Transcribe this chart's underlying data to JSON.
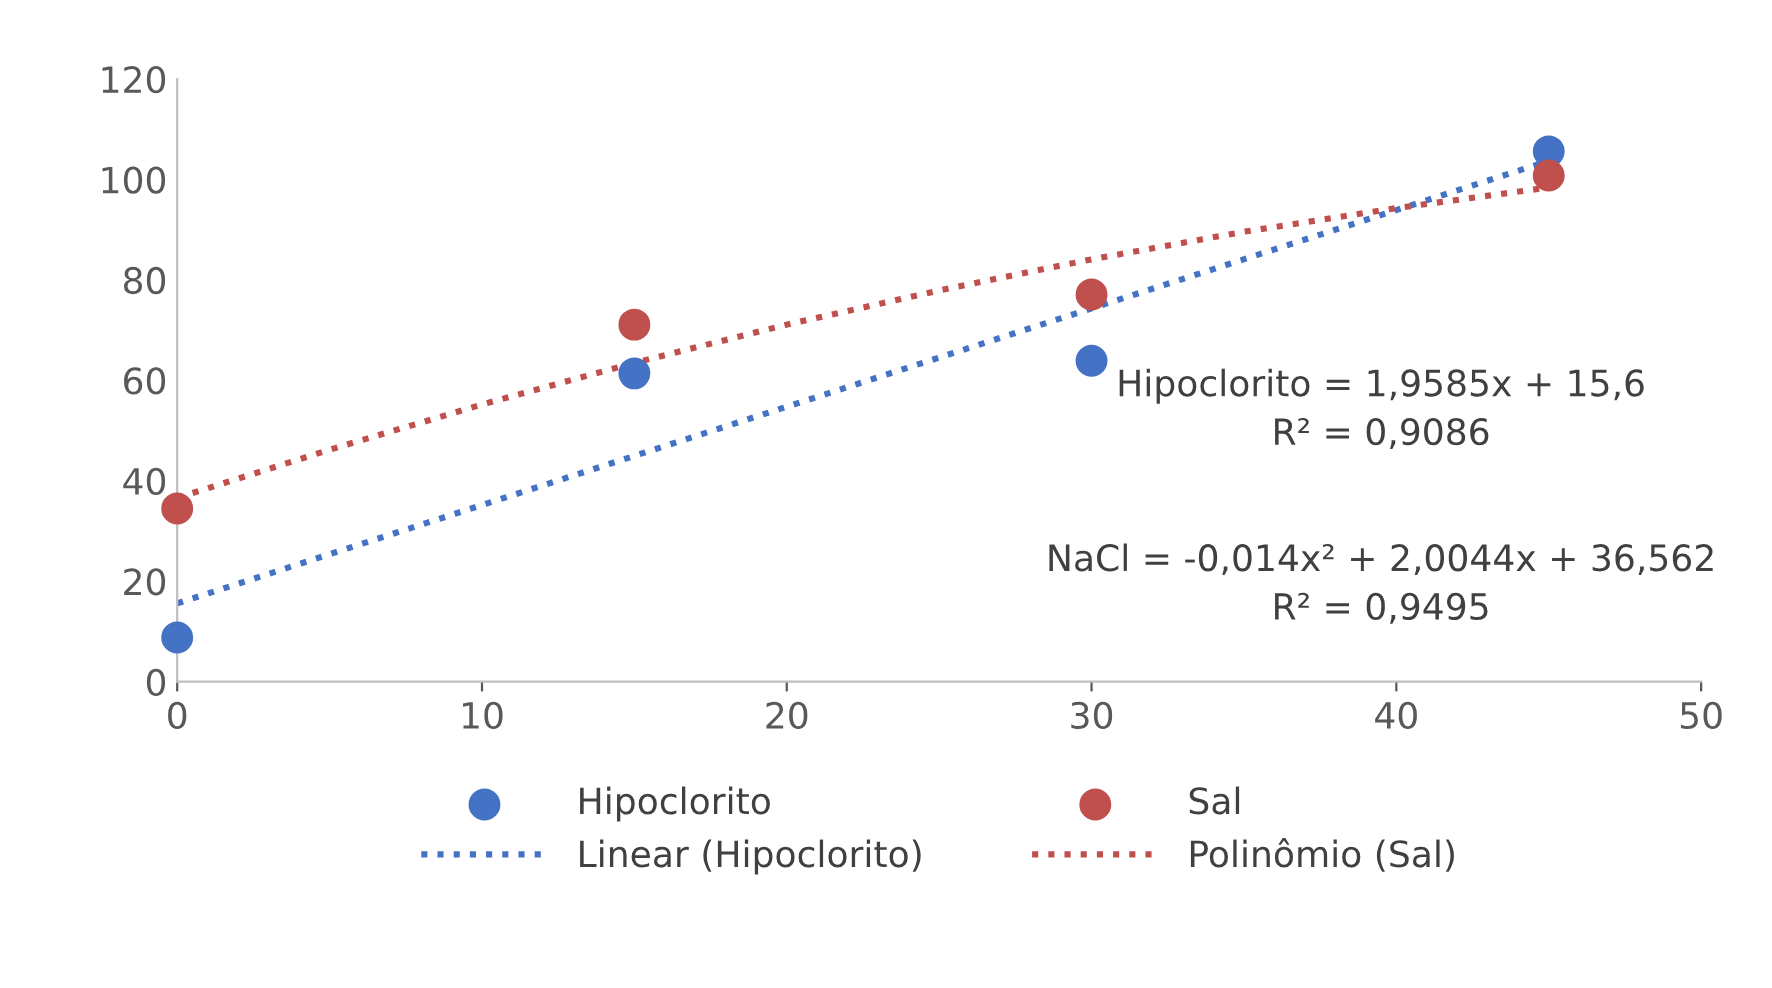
{
  "chart_data": {
    "type": "scatter",
    "x": [
      0,
      15,
      30,
      45
    ],
    "series": [
      {
        "name": "Hipoclorito",
        "color": "#4472c4",
        "values": [
          8.8,
          61.4,
          63.9,
          105.6
        ]
      },
      {
        "name": "Sal",
        "color": "#c0504d",
        "values": [
          34.5,
          71.1,
          77.1,
          100.8
        ]
      },
      {
        "name": "Linear (Hipoclorito)",
        "type": "line",
        "marker": "none",
        "color": "#4472c4",
        "line_style": "dotted",
        "x": [
          0,
          45
        ],
        "values": [
          15.6,
          103.7
        ]
      },
      {
        "name": "Polinômio (Sal)",
        "type": "line",
        "marker": "none",
        "color": "#c0504d",
        "line_style": "dotted",
        "x": [
          0,
          5,
          10,
          15,
          20,
          25,
          30,
          35,
          40,
          45
        ],
        "values": [
          36.6,
          46.2,
          55.2,
          63.5,
          71.1,
          77.9,
          84.1,
          89.6,
          94.3,
          98.4
        ]
      }
    ],
    "marker": "circle",
    "xlim": [
      0,
      50
    ],
    "ylim": [
      0,
      120
    ],
    "xticks": [
      0,
      10,
      20,
      30,
      40,
      50
    ],
    "yticks": [
      0,
      20,
      40,
      60,
      80,
      100,
      120
    ],
    "grid": false,
    "legend": "bottom",
    "annotations": [
      "Hipoclorito = 1,9585x + 15,6\nR² = 0,9086",
      "NaCl = -0,014x² + 2,0044x + 36,562\nR² = 0,9495"
    ]
  }
}
